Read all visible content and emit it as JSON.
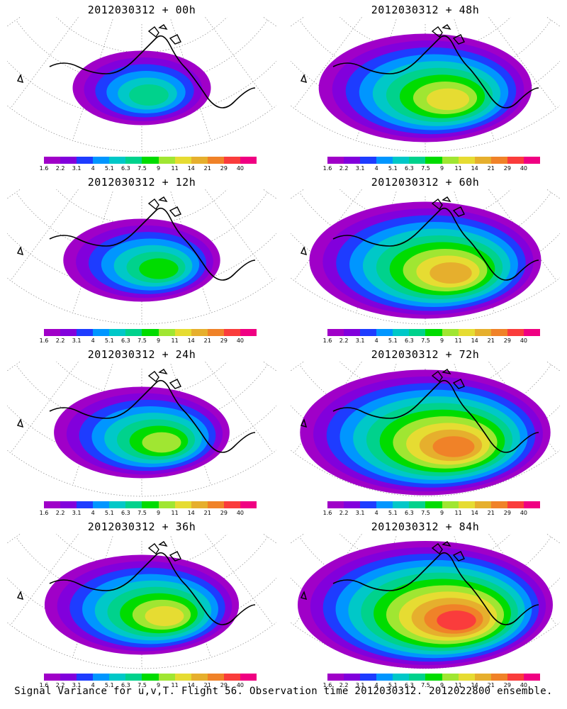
{
  "panels": [
    {
      "title": "2012030312 + 00h",
      "lead_hours": 0
    },
    {
      "title": "2012030312 + 48h",
      "lead_hours": 48
    },
    {
      "title": "2012030312 + 12h",
      "lead_hours": 12
    },
    {
      "title": "2012030312 + 60h",
      "lead_hours": 60
    },
    {
      "title": "2012030312 + 24h",
      "lead_hours": 24
    },
    {
      "title": "2012030312 + 72h",
      "lead_hours": 72
    },
    {
      "title": "2012030312 + 36h",
      "lead_hours": 36
    },
    {
      "title": "2012030312 + 84h",
      "lead_hours": 84
    }
  ],
  "colorbar": {
    "colors": [
      "#a000c8",
      "#8200dc",
      "#1e3cff",
      "#0096ff",
      "#00c8c8",
      "#00d28c",
      "#00dc00",
      "#a0e632",
      "#e6dc32",
      "#e6af2d",
      "#f08228",
      "#fa3c3c",
      "#f00082"
    ],
    "labels": [
      "1.6",
      "2.2",
      "3.1",
      "4",
      "5.1",
      "6.3",
      "7.5",
      "9",
      "11",
      "14",
      "21",
      "29",
      "40"
    ]
  },
  "footer": "Signal Variance for u,v,T. Flight 56. Observation time 2012030312. 2012022800 ensemble."
}
